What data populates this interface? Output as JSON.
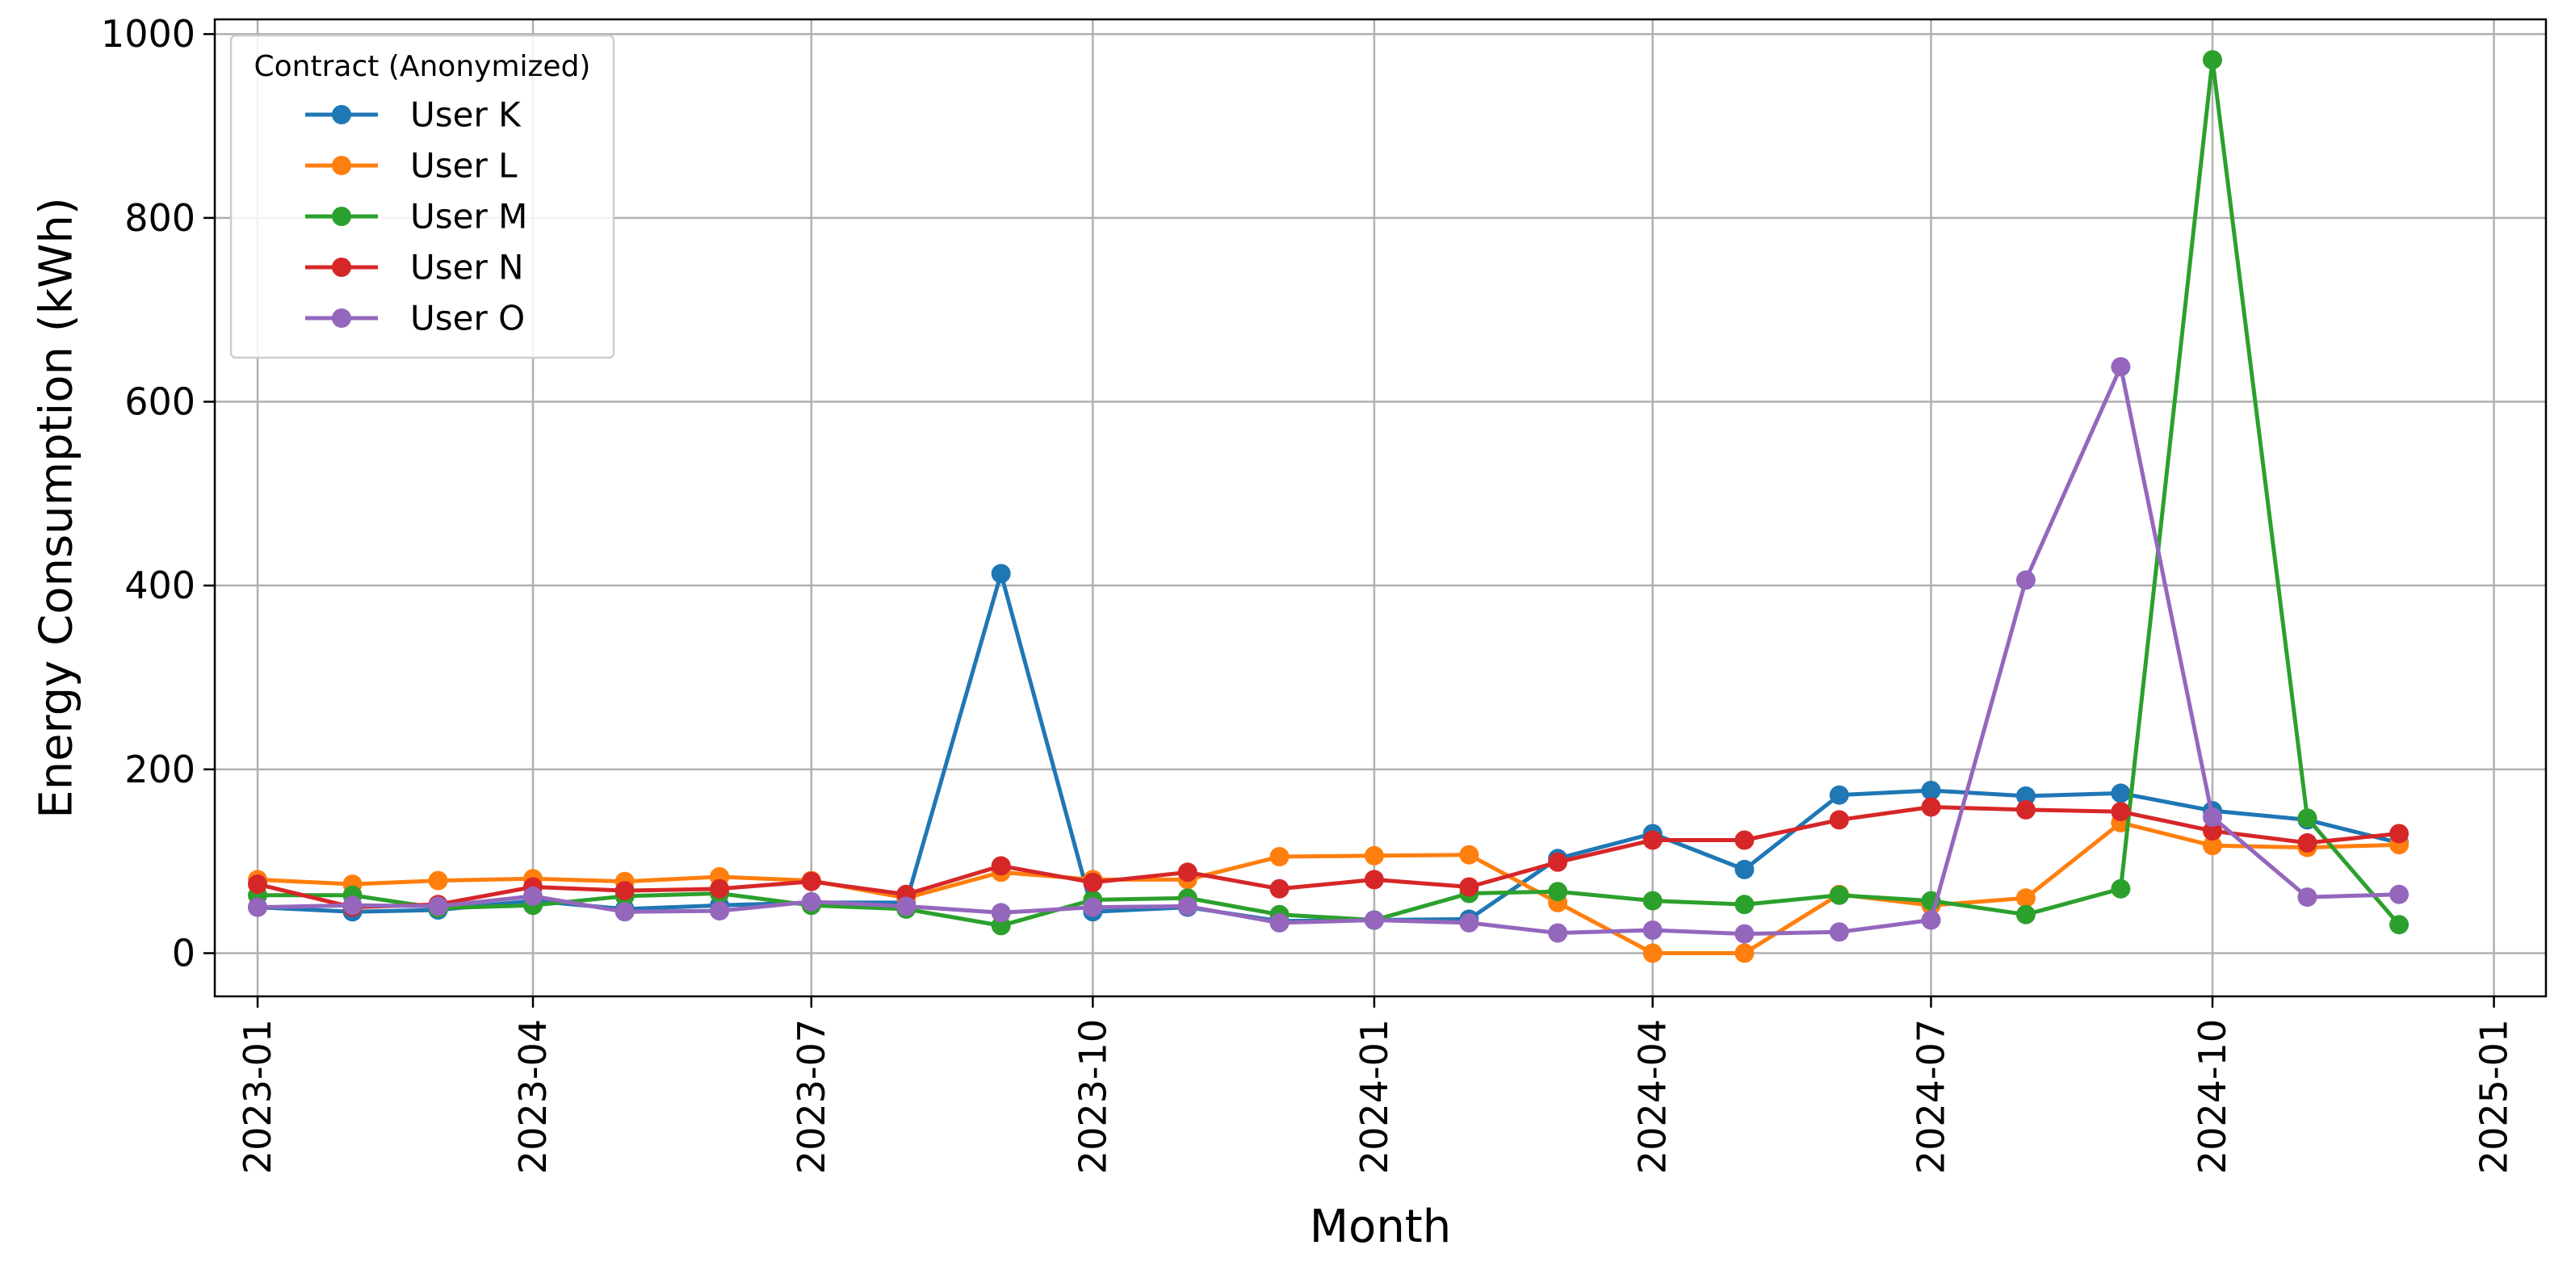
{
  "chart_data": {
    "type": "line",
    "title": "",
    "xlabel": "Month",
    "ylabel": "Energy Consumption (kWh)",
    "ylim": [
      -47,
      1016
    ],
    "xlim": [
      "2022-12-18",
      "2025-01-18"
    ],
    "grid": true,
    "legend": {
      "title": "Contract (Anonymized)",
      "position": "top-left"
    },
    "x_ticks": [
      "2023-01",
      "2023-04",
      "2023-07",
      "2023-10",
      "2024-01",
      "2024-04",
      "2024-07",
      "2024-10",
      "2025-01"
    ],
    "y_ticks": [
      "0",
      "200",
      "400",
      "600",
      "800",
      "1000"
    ],
    "x": [
      "2023-01",
      "2023-02",
      "2023-03",
      "2023-04",
      "2023-05",
      "2023-06",
      "2023-07",
      "2023-08",
      "2023-09",
      "2023-10",
      "2023-11",
      "2023-12",
      "2024-01",
      "2024-02",
      "2024-03",
      "2024-04",
      "2024-05",
      "2024-06",
      "2024-07",
      "2024-08",
      "2024-09",
      "2024-10",
      "2024-11",
      "2024-12"
    ],
    "series": [
      {
        "name": "User K",
        "color": "#1f77b4",
        "values": [
          50,
          45,
          47,
          57,
          48,
          52,
          55,
          55,
          413,
          45,
          50,
          35,
          36,
          37,
          103,
          130,
          91,
          172,
          177,
          171,
          174,
          155,
          145,
          120
        ]
      },
      {
        "name": "User L",
        "color": "#ff7f0e",
        "values": [
          80,
          75,
          79,
          81,
          78,
          83,
          79,
          60,
          88,
          80,
          80,
          105,
          106,
          107,
          55,
          0,
          0,
          64,
          52,
          60,
          142,
          117,
          115,
          118
        ]
      },
      {
        "name": "User M",
        "color": "#2ca02c",
        "values": [
          63,
          63,
          49,
          52,
          62,
          65,
          52,
          48,
          30,
          58,
          60,
          42,
          36,
          65,
          67,
          57,
          53,
          63,
          57,
          42,
          70,
          972,
          147,
          31
        ]
      },
      {
        "name": "User N",
        "color": "#d62728",
        "values": [
          75,
          50,
          53,
          72,
          68,
          70,
          78,
          64,
          95,
          77,
          88,
          70,
          80,
          72,
          99,
          123,
          123,
          145,
          159,
          156,
          154,
          133,
          120,
          130
        ]
      },
      {
        "name": "User O",
        "color": "#9467bd",
        "values": [
          50,
          52,
          51,
          62,
          45,
          46,
          56,
          51,
          44,
          50,
          51,
          33,
          36,
          33,
          22,
          25,
          21,
          23,
          36,
          406,
          638,
          148,
          61,
          64
        ]
      }
    ]
  }
}
